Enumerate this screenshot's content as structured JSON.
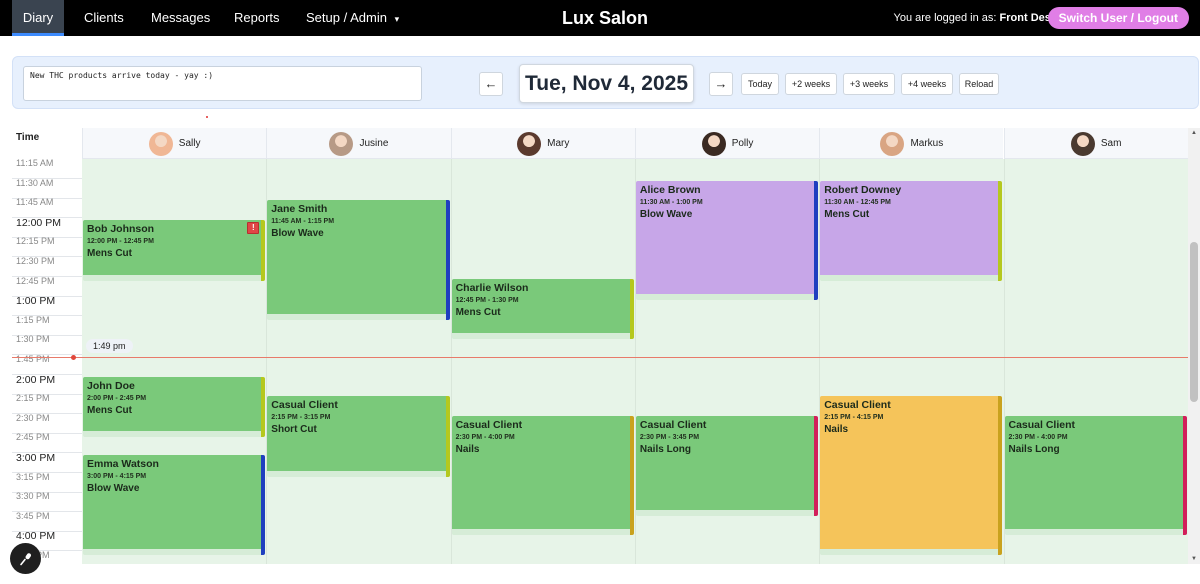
{
  "nav": {
    "items": [
      {
        "label": "Diary",
        "active": true
      },
      {
        "label": "Clients"
      },
      {
        "label": "Messages"
      },
      {
        "label": "Reports"
      },
      {
        "label": "Setup / Admin",
        "dropdown": true
      }
    ],
    "dropdown_icon": "▾",
    "brand": "Lux Salon",
    "logged_prefix": "You are logged in as:",
    "logged_user": "Front Desk",
    "switch_label": "Switch User / Logout"
  },
  "toolbar": {
    "notes": "New THC products arrive today - yay :)",
    "prev_label": "←",
    "next_label": "→",
    "date": "Tue, Nov 4, 2025",
    "today_label": "Today",
    "w2_label": "+2 weeks",
    "w3_label": "+3 weeks",
    "w4_label": "+4 weeks",
    "reload_label": "Reload"
  },
  "grid": {
    "time_header": "Time",
    "now_label": "1:49 pm",
    "slots": [
      {
        "label": "11:15 AM",
        "hour": false
      },
      {
        "label": "11:30 AM",
        "hour": false
      },
      {
        "label": "11:45 AM",
        "hour": false
      },
      {
        "label": "12:00 PM",
        "hour": true
      },
      {
        "label": "12:15 PM",
        "hour": false
      },
      {
        "label": "12:30 PM",
        "hour": false
      },
      {
        "label": "12:45 PM",
        "hour": false
      },
      {
        "label": "1:00 PM",
        "hour": true
      },
      {
        "label": "1:15 PM",
        "hour": false
      },
      {
        "label": "1:30 PM",
        "hour": false
      },
      {
        "label": "1:45 PM",
        "hour": false
      },
      {
        "label": "2:00 PM",
        "hour": true
      },
      {
        "label": "2:15 PM",
        "hour": false
      },
      {
        "label": "2:30 PM",
        "hour": false
      },
      {
        "label": "2:45 PM",
        "hour": false
      },
      {
        "label": "3:00 PM",
        "hour": true
      },
      {
        "label": "3:15 PM",
        "hour": false
      },
      {
        "label": "3:30 PM",
        "hour": false
      },
      {
        "label": "3:45 PM",
        "hour": false
      },
      {
        "label": "4:00 PM",
        "hour": true
      },
      {
        "label": "4:15 PM",
        "hour": false
      }
    ]
  },
  "staff": [
    {
      "name": "Sally",
      "avatar_color": "#f0b795"
    },
    {
      "name": "Jusine",
      "avatar_color": "#b79a86"
    },
    {
      "name": "Mary",
      "avatar_color": "#5b3a2e"
    },
    {
      "name": "Polly",
      "avatar_color": "#3a2a22"
    },
    {
      "name": "Markus",
      "avatar_color": "#d9a583"
    },
    {
      "name": "Sam",
      "avatar_color": "#4a3a30"
    }
  ],
  "appointments": [
    {
      "staff": 0,
      "client": "Bob Johnson",
      "time": "12:00 PM - 12:45 PM",
      "service": "Mens Cut",
      "start": 12.0,
      "end": 12.75,
      "color": "#7ac97a",
      "bar": "#b5c81e",
      "flag": "!"
    },
    {
      "staff": 0,
      "client": "John Doe",
      "time": "2:00 PM - 2:45 PM",
      "service": "Mens Cut",
      "start": 14.0,
      "end": 14.75,
      "color": "#7ac97a",
      "bar": "#b5c81e"
    },
    {
      "staff": 0,
      "client": "Emma Watson",
      "time": "3:00 PM - 4:15 PM",
      "service": "Blow Wave",
      "start": 15.0,
      "end": 16.25,
      "color": "#7ac97a",
      "bar": "#1f3fbf"
    },
    {
      "staff": 1,
      "client": "Jane Smith",
      "time": "11:45 AM - 1:15 PM",
      "service": "Blow Wave",
      "start": 11.75,
      "end": 13.25,
      "color": "#7ac97a",
      "bar": "#1f3fbf"
    },
    {
      "staff": 1,
      "client": "Casual Client",
      "time": "2:15 PM - 3:15 PM",
      "service": "Short Cut",
      "start": 14.25,
      "end": 15.25,
      "color": "#7ac97a",
      "bar": "#b5c81e"
    },
    {
      "staff": 2,
      "client": "Charlie Wilson",
      "time": "12:45 PM - 1:30 PM",
      "service": "Mens Cut",
      "start": 12.75,
      "end": 13.5,
      "color": "#7ac97a",
      "bar": "#b5c81e"
    },
    {
      "staff": 2,
      "client": "Casual Client",
      "time": "2:30 PM - 4:00 PM",
      "service": "Nails",
      "start": 14.5,
      "end": 16.0,
      "color": "#7ac97a",
      "bar": "#c9a21e"
    },
    {
      "staff": 3,
      "client": "Alice Brown",
      "time": "11:30 AM - 1:00 PM",
      "service": "Blow Wave",
      "start": 11.5,
      "end": 13.0,
      "color": "#c7a6e8",
      "bar": "#1f3fbf"
    },
    {
      "staff": 3,
      "client": "Casual Client",
      "time": "2:30 PM - 3:45 PM",
      "service": "Nails Long",
      "start": 14.5,
      "end": 15.75,
      "color": "#7ac97a",
      "bar": "#d21f5a"
    },
    {
      "staff": 4,
      "client": "Robert Downey",
      "time": "11:30 AM - 12:45 PM",
      "service": "Mens Cut",
      "start": 11.5,
      "end": 12.75,
      "color": "#c7a6e8",
      "bar": "#b5c81e"
    },
    {
      "staff": 4,
      "client": "Casual Client",
      "time": "2:15 PM - 4:15 PM",
      "service": "Nails",
      "start": 14.25,
      "end": 16.25,
      "color": "#f5c45a",
      "bar": "#c9a21e"
    },
    {
      "staff": 5,
      "client": "Casual Client",
      "time": "2:30 PM - 4:00 PM",
      "service": "Nails Long",
      "start": 14.5,
      "end": 16.0,
      "color": "#7ac97a",
      "bar": "#d21f5a"
    }
  ],
  "icons": {
    "mic": "microphone-icon"
  }
}
